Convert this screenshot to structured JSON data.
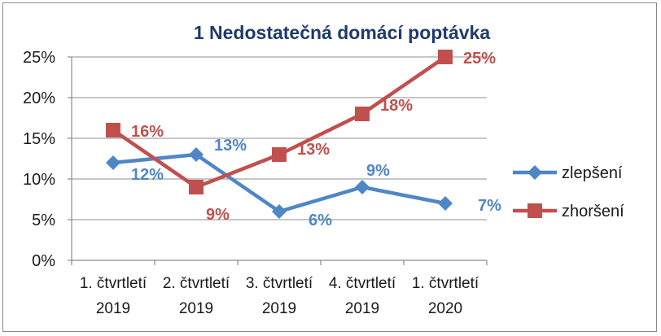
{
  "chart_data": {
    "type": "line",
    "title": "1 Nedostatečná domácí poptávka",
    "categories": [
      [
        "1. čtvrtletí",
        "2019"
      ],
      [
        "2. čtvrtletí",
        "2019"
      ],
      [
        "3. čtvrtletí",
        "2019"
      ],
      [
        "4. čtvrtletí",
        "2019"
      ],
      [
        "1. čtvrtletí",
        "2020"
      ]
    ],
    "y_ticks": [
      "0%",
      "5%",
      "10%",
      "15%",
      "20%",
      "25%"
    ],
    "ylim": [
      0,
      25
    ],
    "grid": true,
    "legend_position": "right",
    "series": [
      {
        "name": "zlepšení",
        "values": [
          12,
          13,
          6,
          9,
          7
        ],
        "labels": [
          "12%",
          "13%",
          "6%",
          "9%",
          "7%"
        ],
        "color": "#4f86c6",
        "marker": "diamond"
      },
      {
        "name": "zhoršení",
        "values": [
          16,
          9,
          13,
          18,
          25
        ],
        "labels": [
          "16%",
          "9%",
          "13%",
          "18%",
          "25%"
        ],
        "color": "#c0504d",
        "marker": "square"
      }
    ]
  }
}
